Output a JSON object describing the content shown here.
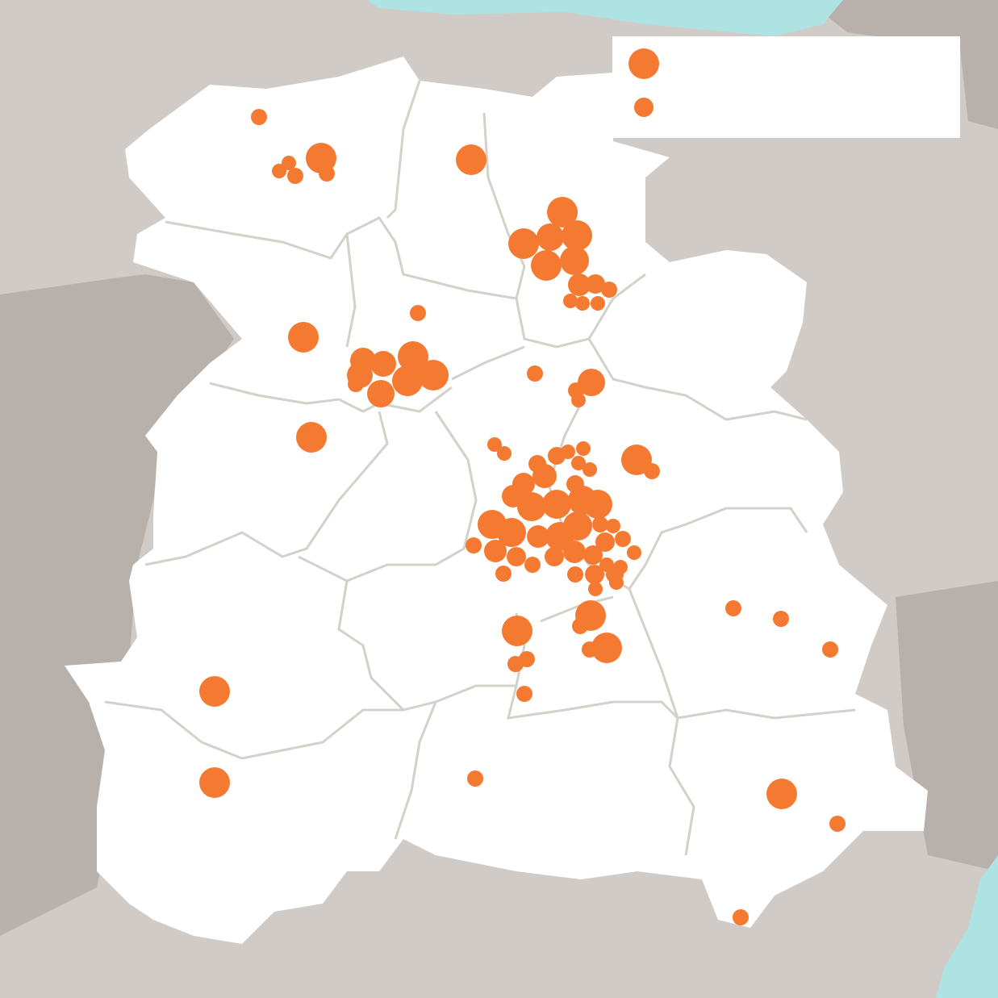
{
  "map": {
    "colors": {
      "background": "#d0cbc6",
      "dark_land": "#b8b0ab",
      "water": "#aee3e3",
      "region_fill": "#ffffff",
      "region_border": "#d4d0ca",
      "marker": "#f47a32"
    },
    "legend": {
      "entries": [
        {
          "size": "large",
          "label": ""
        },
        {
          "size": "small",
          "label": ""
        }
      ]
    }
  }
}
